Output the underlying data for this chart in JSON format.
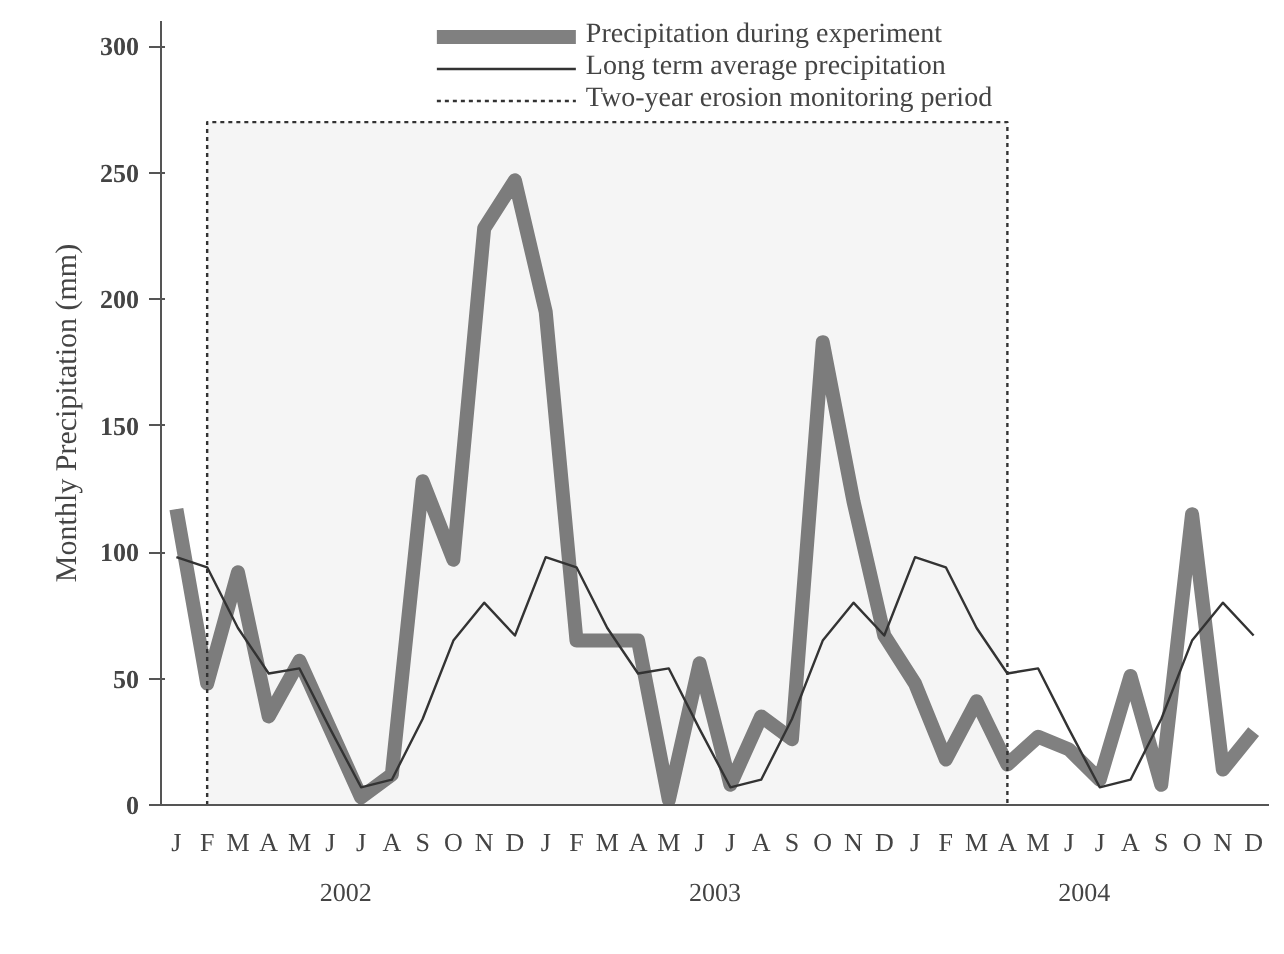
{
  "chart_data": {
    "type": "line",
    "ylabel": "Monthly Precipitation (mm)",
    "categories": [
      "J",
      "F",
      "M",
      "A",
      "M",
      "J",
      "J",
      "A",
      "S",
      "O",
      "N",
      "D",
      "J",
      "F",
      "M",
      "A",
      "M",
      "J",
      "J",
      "A",
      "S",
      "O",
      "N",
      "D",
      "J",
      "F",
      "M",
      "A",
      "M",
      "J",
      "J",
      "A",
      "S",
      "O",
      "N",
      "D"
    ],
    "ylim": [
      0,
      310
    ],
    "yticks": [
      0,
      50,
      100,
      150,
      200,
      250,
      300
    ],
    "series": [
      {
        "name": "Precipitation during experiment",
        "color": "#808080",
        "values": [
          117,
          48,
          92,
          35,
          57,
          30,
          3,
          12,
          128,
          97,
          228,
          247,
          195,
          65,
          65,
          65,
          2,
          56,
          8,
          35,
          26,
          183,
          120,
          67,
          48,
          18,
          41,
          16,
          27,
          22,
          10,
          51,
          8,
          115,
          14,
          29
        ]
      },
      {
        "name": "Long term average precipitation",
        "color": "#333333",
        "values": [
          98,
          94,
          70,
          52,
          54,
          30,
          7,
          10,
          34,
          65,
          80,
          67,
          98,
          94,
          70,
          52,
          54,
          30,
          7,
          10,
          34,
          65,
          80,
          67,
          98,
          94,
          70,
          52,
          54,
          30,
          7,
          10,
          34,
          65,
          80,
          67
        ]
      },
      {
        "name": "Two-year erosion monitoring period",
        "type": "area",
        "color": "#333333",
        "line_style": "dotted",
        "values": [
          null,
          270,
          270,
          270,
          270,
          270,
          270,
          270,
          270,
          270,
          270,
          270,
          270,
          270,
          270,
          270,
          270,
          270,
          270,
          270,
          270,
          270,
          270,
          270,
          270,
          270,
          270,
          270,
          null,
          null,
          null,
          null,
          null,
          null,
          null,
          null
        ]
      }
    ],
    "annotations": [
      "2002",
      "2003",
      "2004"
    ],
    "legend": "top",
    "grid": false,
    "marker": "none"
  }
}
